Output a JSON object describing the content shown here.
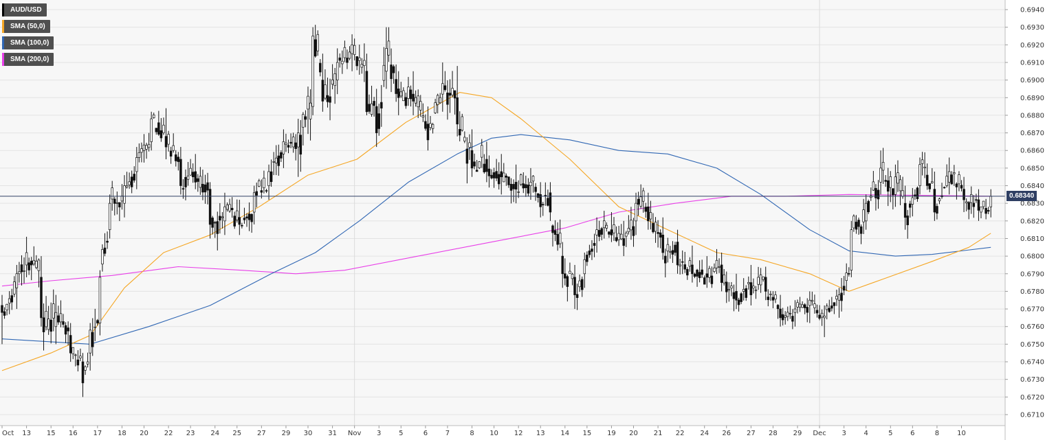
{
  "chart_data": {
    "type": "candlestick",
    "symbol": "AUD/USD",
    "legend": [
      {
        "label": "AUD/USD",
        "color": "#000000"
      },
      {
        "label": "SMA (50,0)",
        "color": "#f5a623"
      },
      {
        "label": "SMA (100,0)",
        "color": "#2f66b3"
      },
      {
        "label": "SMA (200,0)",
        "color": "#e83ee8"
      }
    ],
    "current_price": "0.68340",
    "current_price_value": 0.6834,
    "ylim": [
      0.6705,
      0.6945
    ],
    "y_ticks": [
      "0.6710",
      "0.6720",
      "0.6730",
      "0.6740",
      "0.6750",
      "0.6760",
      "0.6770",
      "0.6780",
      "0.6790",
      "0.6800",
      "0.6810",
      "0.6820",
      "0.6830",
      "0.6840",
      "0.6850",
      "0.6860",
      "0.6870",
      "0.6880",
      "0.6890",
      "0.6900",
      "0.6910",
      "0.6920",
      "0.6930",
      "0.6940"
    ],
    "x_labels": [
      "Oct",
      "13",
      "15",
      "16",
      "17",
      "18",
      "20",
      "22",
      "23",
      "24",
      "25",
      "27",
      "29",
      "30",
      "31",
      "Nov",
      "3",
      "5",
      "6",
      "7",
      "8",
      "10",
      "12",
      "13",
      "14",
      "15",
      "19",
      "20",
      "21",
      "22",
      "24",
      "26",
      "27",
      "28",
      "29",
      "Dec",
      "3",
      "4",
      "5",
      "6",
      "8",
      "10"
    ],
    "bars_per_day": 6,
    "x_label_bar_index": [
      0,
      10,
      20,
      29,
      39,
      49,
      58,
      68,
      77,
      87,
      96,
      106,
      116,
      125,
      135,
      144,
      154,
      163,
      173,
      182,
      192,
      201,
      211,
      220,
      230,
      239,
      249,
      258,
      268,
      277,
      287,
      296,
      306,
      315,
      325,
      334,
      344,
      353,
      363,
      372,
      382,
      392
    ],
    "ohlc_anchors": [
      [
        0,
        0.6772,
        0.6778,
        0.675,
        0.6768
      ],
      [
        6,
        0.6782,
        0.6795,
        0.677,
        0.679
      ],
      [
        10,
        0.6795,
        0.6811,
        0.6788,
        0.6802
      ],
      [
        16,
        0.6788,
        0.68,
        0.676,
        0.6765
      ],
      [
        22,
        0.676,
        0.6778,
        0.675,
        0.6768
      ],
      [
        28,
        0.6755,
        0.6762,
        0.674,
        0.6745
      ],
      [
        33,
        0.674,
        0.6745,
        0.672,
        0.6728
      ],
      [
        36,
        0.6745,
        0.6762,
        0.6735,
        0.6758
      ],
      [
        40,
        0.6762,
        0.6792,
        0.6755,
        0.6788
      ],
      [
        44,
        0.6815,
        0.6835,
        0.681,
        0.683
      ],
      [
        50,
        0.683,
        0.6846,
        0.6822,
        0.684
      ],
      [
        55,
        0.6848,
        0.6862,
        0.6838,
        0.6856
      ],
      [
        61,
        0.6865,
        0.6882,
        0.686,
        0.6878
      ],
      [
        67,
        0.6868,
        0.6884,
        0.6855,
        0.6862
      ],
      [
        73,
        0.6855,
        0.6862,
        0.6835,
        0.684
      ],
      [
        79,
        0.6848,
        0.6858,
        0.6838,
        0.6842
      ],
      [
        85,
        0.6838,
        0.6842,
        0.681,
        0.6818
      ],
      [
        91,
        0.682,
        0.6836,
        0.6812,
        0.6828
      ],
      [
        97,
        0.6822,
        0.6832,
        0.6812,
        0.6818
      ],
      [
        103,
        0.6825,
        0.684,
        0.6818,
        0.6836
      ],
      [
        109,
        0.684,
        0.6852,
        0.6832,
        0.6848
      ],
      [
        115,
        0.6858,
        0.6872,
        0.685,
        0.6865
      ],
      [
        121,
        0.6862,
        0.6878,
        0.6845,
        0.687
      ],
      [
        127,
        0.6885,
        0.693,
        0.688,
        0.6925
      ],
      [
        131,
        0.69,
        0.6915,
        0.6882,
        0.6888
      ],
      [
        137,
        0.69,
        0.6918,
        0.6892,
        0.691
      ],
      [
        143,
        0.6915,
        0.6926,
        0.6905,
        0.692
      ],
      [
        149,
        0.6905,
        0.6915,
        0.688,
        0.6882
      ],
      [
        153,
        0.6885,
        0.6895,
        0.6862,
        0.687
      ],
      [
        157,
        0.6905,
        0.693,
        0.6895,
        0.6918
      ],
      [
        162,
        0.6895,
        0.6905,
        0.688,
        0.689
      ],
      [
        168,
        0.6892,
        0.6905,
        0.688,
        0.6888
      ],
      [
        174,
        0.6875,
        0.6885,
        0.686,
        0.6866
      ],
      [
        180,
        0.6892,
        0.691,
        0.6882,
        0.6898
      ],
      [
        186,
        0.689,
        0.6908,
        0.6868,
        0.6875
      ],
      [
        192,
        0.686,
        0.6872,
        0.6845,
        0.685
      ],
      [
        198,
        0.6855,
        0.6865,
        0.6842,
        0.6848
      ],
      [
        204,
        0.6848,
        0.6858,
        0.6835,
        0.6845
      ],
      [
        210,
        0.6842,
        0.6852,
        0.683,
        0.6838
      ],
      [
        216,
        0.684,
        0.685,
        0.6832,
        0.6842
      ],
      [
        220,
        0.6835,
        0.6842,
        0.6822,
        0.6828
      ],
      [
        224,
        0.6836,
        0.6842,
        0.682,
        0.6825
      ],
      [
        229,
        0.68,
        0.6808,
        0.6782,
        0.679
      ],
      [
        234,
        0.6788,
        0.6795,
        0.677,
        0.6778
      ],
      [
        238,
        0.679,
        0.6802,
        0.6782,
        0.6798
      ],
      [
        243,
        0.6812,
        0.6822,
        0.6802,
        0.6815
      ],
      [
        249,
        0.6815,
        0.6825,
        0.6808,
        0.6812
      ],
      [
        254,
        0.681,
        0.682,
        0.68,
        0.6806
      ],
      [
        259,
        0.682,
        0.6836,
        0.6812,
        0.683
      ],
      [
        264,
        0.6828,
        0.6836,
        0.6815,
        0.682
      ],
      [
        270,
        0.6812,
        0.6822,
        0.6798,
        0.6802
      ],
      [
        276,
        0.6808,
        0.6815,
        0.679,
        0.6795
      ],
      [
        282,
        0.6795,
        0.6806,
        0.6785,
        0.679
      ],
      [
        288,
        0.679,
        0.68,
        0.6782,
        0.6788
      ],
      [
        294,
        0.6795,
        0.6802,
        0.678,
        0.6785
      ],
      [
        300,
        0.678,
        0.679,
        0.677,
        0.6775
      ],
      [
        306,
        0.6785,
        0.6795,
        0.6772,
        0.6778
      ],
      [
        312,
        0.6788,
        0.6794,
        0.6775,
        0.678
      ],
      [
        318,
        0.677,
        0.6778,
        0.676,
        0.6765
      ],
      [
        324,
        0.6768,
        0.6775,
        0.676,
        0.677
      ],
      [
        330,
        0.6772,
        0.678,
        0.6762,
        0.6775
      ],
      [
        336,
        0.6765,
        0.6772,
        0.6754,
        0.6766
      ],
      [
        342,
        0.6775,
        0.6782,
        0.6765,
        0.6778
      ],
      [
        347,
        0.6792,
        0.682,
        0.6788,
        0.6815
      ],
      [
        353,
        0.682,
        0.6835,
        0.6815,
        0.683
      ],
      [
        359,
        0.6842,
        0.686,
        0.6835,
        0.685
      ],
      [
        365,
        0.6835,
        0.6852,
        0.6828,
        0.6845
      ],
      [
        369,
        0.683,
        0.684,
        0.6815,
        0.6822
      ],
      [
        375,
        0.684,
        0.6856,
        0.6835,
        0.6852
      ],
      [
        381,
        0.6838,
        0.6848,
        0.682,
        0.6825
      ],
      [
        387,
        0.6842,
        0.6856,
        0.6835,
        0.6848
      ],
      [
        393,
        0.6838,
        0.6845,
        0.6825,
        0.6832
      ],
      [
        399,
        0.6832,
        0.6838,
        0.682,
        0.6826
      ],
      [
        404,
        0.6828,
        0.6838,
        0.6822,
        0.6834
      ]
    ],
    "sma50": [
      [
        0,
        0.6735
      ],
      [
        20,
        0.6745
      ],
      [
        36,
        0.6755
      ],
      [
        50,
        0.6782
      ],
      [
        66,
        0.6802
      ],
      [
        85,
        0.6812
      ],
      [
        105,
        0.6828
      ],
      [
        125,
        0.6846
      ],
      [
        145,
        0.6855
      ],
      [
        165,
        0.6876
      ],
      [
        187,
        0.6893
      ],
      [
        200,
        0.689
      ],
      [
        212,
        0.6878
      ],
      [
        232,
        0.6855
      ],
      [
        252,
        0.6828
      ],
      [
        272,
        0.6815
      ],
      [
        292,
        0.6802
      ],
      [
        310,
        0.6798
      ],
      [
        330,
        0.679
      ],
      [
        346,
        0.678
      ],
      [
        360,
        0.6787
      ],
      [
        380,
        0.6797
      ],
      [
        395,
        0.6805
      ],
      [
        404,
        0.6813
      ]
    ],
    "sma100": [
      [
        0,
        0.6753
      ],
      [
        36,
        0.675
      ],
      [
        60,
        0.676
      ],
      [
        85,
        0.6772
      ],
      [
        110,
        0.679
      ],
      [
        128,
        0.6802
      ],
      [
        146,
        0.682
      ],
      [
        166,
        0.6842
      ],
      [
        186,
        0.6858
      ],
      [
        200,
        0.6867
      ],
      [
        212,
        0.6869
      ],
      [
        232,
        0.6866
      ],
      [
        252,
        0.686
      ],
      [
        272,
        0.6858
      ],
      [
        292,
        0.685
      ],
      [
        310,
        0.6835
      ],
      [
        330,
        0.6815
      ],
      [
        346,
        0.6803
      ],
      [
        365,
        0.68
      ],
      [
        380,
        0.6801
      ],
      [
        404,
        0.6805
      ]
    ],
    "sma200": [
      [
        0,
        0.6783
      ],
      [
        20,
        0.6786
      ],
      [
        45,
        0.6789
      ],
      [
        72,
        0.6794
      ],
      [
        98,
        0.6792
      ],
      [
        120,
        0.679
      ],
      [
        140,
        0.6792
      ],
      [
        170,
        0.68
      ],
      [
        200,
        0.6808
      ],
      [
        230,
        0.6816
      ],
      [
        252,
        0.6825
      ],
      [
        275,
        0.683
      ],
      [
        298,
        0.6834
      ],
      [
        320,
        0.6834
      ],
      [
        346,
        0.6835
      ],
      [
        404,
        0.6834
      ]
    ]
  }
}
